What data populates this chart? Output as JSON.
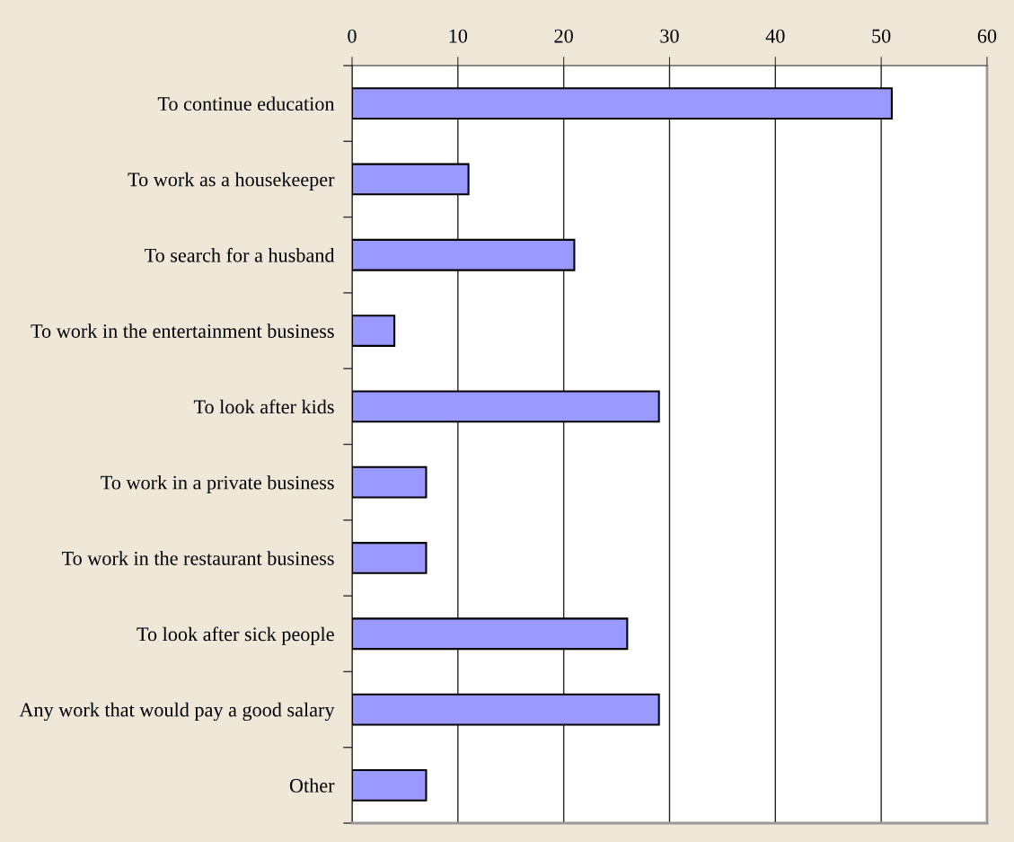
{
  "chart_data": {
    "type": "bar",
    "orientation": "horizontal",
    "categories": [
      "To continue education",
      "To work as a housekeeper",
      "To search for a husband",
      "To work in the entertainment business",
      "To look after kids",
      "To work in a private business",
      "To work in the restaurant business",
      "To look after sick people",
      "Any work that would pay a good salary",
      "Other"
    ],
    "values": [
      51,
      11,
      21,
      4,
      29,
      7,
      7,
      26,
      29,
      7
    ],
    "color": "#9999ff",
    "xlim": [
      0,
      60
    ],
    "xticks": [
      0,
      10,
      20,
      30,
      40,
      50,
      60
    ],
    "grid": "x"
  }
}
